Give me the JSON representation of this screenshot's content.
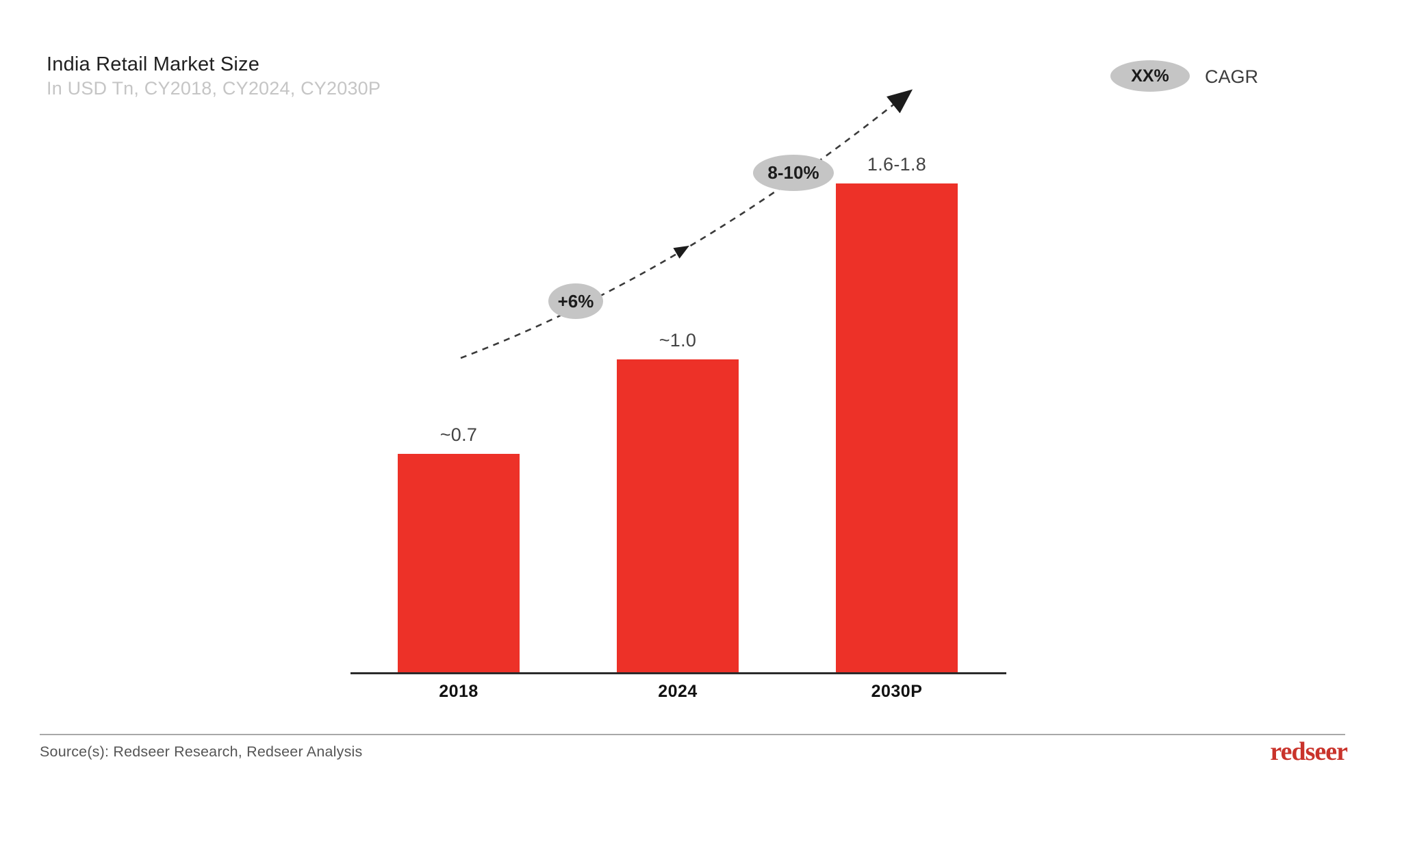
{
  "header": {
    "title": "India Retail Market Size",
    "subtitle": "In USD Tn, CY2018, CY2024, CY2030P"
  },
  "legend": {
    "badge": "XX%",
    "label": "CAGR"
  },
  "chart_data": {
    "type": "bar",
    "title": "India Retail Market Size",
    "unit": "USD Tn",
    "categories": [
      "2018",
      "2024",
      "2030P"
    ],
    "values": [
      0.7,
      1.0,
      1.7
    ],
    "value_labels": [
      "~0.7",
      "~1.0",
      "1.6-1.8"
    ],
    "growth_annotations": [
      {
        "label": "+6%",
        "between": [
          "2018",
          "2024"
        ]
      },
      {
        "label": "8-10%",
        "between": [
          "2024",
          "2030P"
        ]
      }
    ],
    "bar_color": "#ED3128",
    "annotation_bg": "#c5c5c5",
    "bar_height_fractions": [
      0.447,
      0.64,
      1.0
    ],
    "ylim": [
      0,
      1.8
    ],
    "grid": false,
    "legend_position": "top-right"
  },
  "footer": {
    "source": "Source(s): Redseer Research, Redseer Analysis",
    "logo_text": "redseer",
    "logo_color": "#c9332b"
  }
}
